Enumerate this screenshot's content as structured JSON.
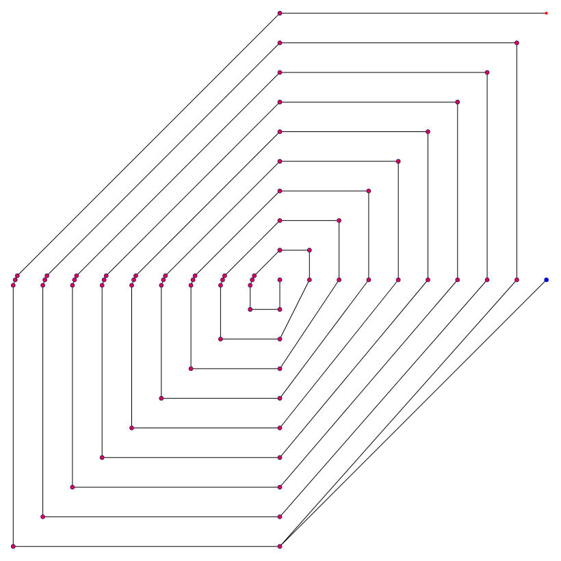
{
  "diagram": {
    "type": "graph-drawing",
    "description_visible_text": "",
    "colors": {
      "edge": "#000000",
      "node": "#e0004f",
      "node_stroke": "#1a1a66",
      "start_node": "#0000ff",
      "end_node": "#ff0000",
      "background": "#ffffff"
    },
    "spiral": {
      "rings": 9,
      "node_count_per_ring": 8
    }
  }
}
